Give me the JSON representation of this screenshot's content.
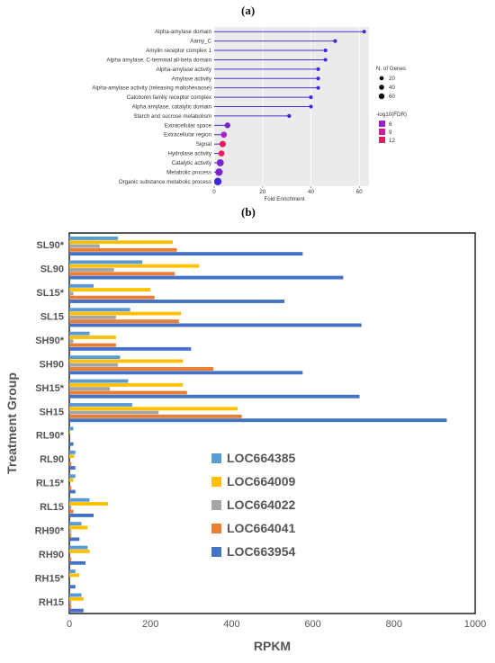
{
  "panels": {
    "a": "(a)",
    "b": "(b)"
  },
  "chart_data": [
    {
      "type": "lollipop",
      "categories": [
        "Alpha-amylase domain",
        "Aamy_C",
        "Amylin receptor complex 1",
        "Alpha amylase, C-terminal all-beta domain",
        "Alpha-amylase activity",
        "Amylase activity",
        "Alpha-amylase activity (releasing maltohexaose)",
        "Calcitonin family receptor complex",
        "Alpha amylase, catalytic domain",
        "Starch and sucrose metabolism",
        "Extracellular space",
        "Extracellular region",
        "Signal",
        "Hydrolase activity",
        "Catalytic activity",
        "Metabolic process",
        "Organic substance metabolic process"
      ],
      "fold_enrichment": [
        62,
        50,
        46,
        46,
        43,
        43,
        43,
        40,
        40,
        31,
        5.5,
        4,
        3.5,
        3,
        2.5,
        2,
        1.5
      ],
      "n_genes": [
        2,
        2,
        2,
        2,
        2,
        2,
        2,
        2,
        2,
        3,
        20,
        25,
        30,
        25,
        45,
        50,
        55
      ],
      "neg_log10_fdr": [
        3,
        3,
        3,
        3,
        3,
        3,
        3,
        3,
        3,
        3,
        6,
        9,
        12,
        12,
        6,
        5,
        4
      ],
      "xlabel": "Fold Enrichment",
      "xticks": [
        0,
        20,
        40,
        60
      ],
      "xlim": [
        0,
        64
      ],
      "legend_size_title": "N. of Genes",
      "legend_size_values": [
        "20",
        "40",
        "60"
      ],
      "legend_color_title": "-log10(FDR)",
      "legend_color_values": [
        "6",
        "9",
        "12"
      ],
      "colors": {
        "line": "#4b2fd0",
        "panel_bg": "#ebebeb",
        "low": "#3d2bd9",
        "mid": "#b01ec8",
        "high": "#ee1a5f"
      }
    },
    {
      "type": "bar",
      "orientation": "horizontal",
      "categories": [
        "SL90*",
        "SL90",
        "SL15*",
        "SL15",
        "SH90*",
        "SH90",
        "SH15*",
        "SH15",
        "RL90*",
        "RL90",
        "RL15*",
        "RL15",
        "RH90*",
        "RH90",
        "RH15*",
        "RH15"
      ],
      "series": [
        {
          "name": "LOC664385",
          "color": "#5b9bd5",
          "values": [
            120,
            180,
            60,
            150,
            50,
            125,
            145,
            155,
            10,
            15,
            15,
            50,
            30,
            45,
            15,
            30
          ]
        },
        {
          "name": "LOC664009",
          "color": "#ffc000",
          "values": [
            255,
            320,
            200,
            275,
            115,
            280,
            280,
            415,
            2,
            12,
            10,
            95,
            45,
            50,
            25,
            35
          ]
        },
        {
          "name": "LOC664022",
          "color": "#a5a5a5",
          "values": [
            75,
            110,
            10,
            115,
            10,
            120,
            100,
            220,
            0,
            0,
            0,
            5,
            5,
            0,
            0,
            5
          ]
        },
        {
          "name": "LOC664041",
          "color": "#ed7d31",
          "values": [
            265,
            260,
            210,
            270,
            115,
            355,
            290,
            425,
            0,
            5,
            5,
            10,
            5,
            5,
            0,
            5
          ]
        },
        {
          "name": "LOC663954",
          "color": "#4472c4",
          "values": [
            575,
            675,
            530,
            720,
            300,
            575,
            715,
            930,
            10,
            15,
            15,
            60,
            25,
            40,
            15,
            35
          ]
        }
      ],
      "xlabel": "RPKM",
      "ylabel": "Treatment Group",
      "xticks": [
        "0",
        "200",
        "400",
        "600",
        "800",
        "1000"
      ],
      "xlim": [
        0,
        1000
      ]
    }
  ]
}
